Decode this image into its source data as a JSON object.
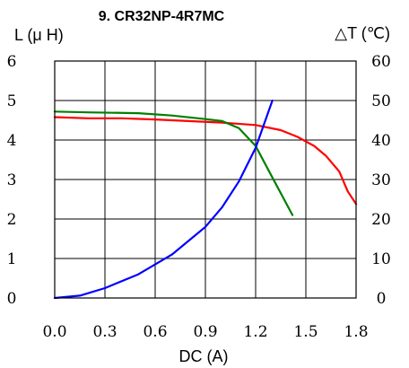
{
  "chart_data": {
    "type": "line",
    "title": "9. CR32NP-4R7MC",
    "xlabel": "DC (A)",
    "ylabel_left": "L (μ H)",
    "ylabel_right": "△T (℃)",
    "x_ticks": [
      "0.0",
      "0.3",
      "0.6",
      "0.9",
      "1.2",
      "1.5",
      "1.8"
    ],
    "y_left_ticks": [
      "0",
      "1",
      "2",
      "3",
      "4",
      "5",
      "6"
    ],
    "y_right_ticks": [
      "0",
      "10",
      "20",
      "30",
      "40",
      "50",
      "60"
    ],
    "xlim": [
      0,
      1.8
    ],
    "ylim_left": [
      0,
      6
    ],
    "ylim_right": [
      0,
      60
    ],
    "grid": true,
    "series": [
      {
        "axis": "left",
        "color": "#ff0000",
        "x": [
          0.0,
          0.2,
          0.4,
          0.6,
          0.8,
          1.0,
          1.2,
          1.35,
          1.45,
          1.55,
          1.62,
          1.7,
          1.75,
          1.8
        ],
        "y": [
          4.58,
          4.55,
          4.55,
          4.52,
          4.48,
          4.44,
          4.38,
          4.25,
          4.08,
          3.85,
          3.6,
          3.2,
          2.7,
          2.38
        ]
      },
      {
        "axis": "left",
        "color": "#008000",
        "x": [
          0.0,
          0.2,
          0.5,
          0.7,
          0.9,
          1.0,
          1.1,
          1.2,
          1.3,
          1.42
        ],
        "y": [
          4.72,
          4.7,
          4.68,
          4.62,
          4.53,
          4.48,
          4.3,
          3.85,
          3.05,
          2.1
        ]
      },
      {
        "axis": "right",
        "color": "#0000ff",
        "x": [
          0.0,
          0.15,
          0.3,
          0.5,
          0.7,
          0.9,
          1.0,
          1.1,
          1.2,
          1.3
        ],
        "y": [
          0,
          0.6,
          2.5,
          6.0,
          11.0,
          18.0,
          23.0,
          29.5,
          38.0,
          50.0
        ]
      }
    ]
  }
}
